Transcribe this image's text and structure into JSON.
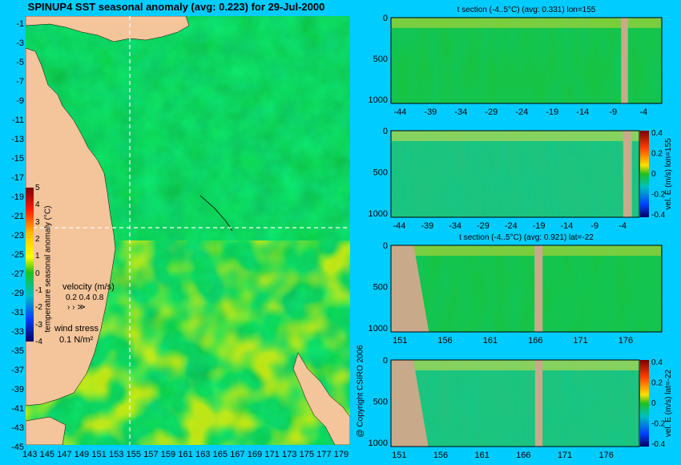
{
  "title": "SPINUP4 SST seasonal anomaly (avg: 0.223) for 29-Jul-2000",
  "copyright": "@ Copyright CSIRO 2006",
  "map": {
    "lat_labels": [
      "-1",
      "-3",
      "-5",
      "-7",
      "-9",
      "-11",
      "-13",
      "-15",
      "-17",
      "-19",
      "-21",
      "-23",
      "-25",
      "-27",
      "-29",
      "-31",
      "-33",
      "-35",
      "-37",
      "-39",
      "-41",
      "-43",
      "-45"
    ],
    "lon_labels": [
      "143",
      "145",
      "147",
      "149",
      "151",
      "153",
      "155",
      "157",
      "159",
      "161",
      "163",
      "165",
      "167",
      "169",
      "171",
      "173",
      "175",
      "177",
      "179"
    ],
    "colorbar_ticks": [
      "5",
      "4",
      "3",
      "2",
      "1",
      "0",
      "-1",
      "-2",
      "-3",
      "-4"
    ],
    "colorbar_label": "temperature seasonal anomaly (°C)",
    "velocity_label": "velocity (m/s)",
    "velocity_scale": "0.2 0.4 0.8",
    "wind_label": "wind stress",
    "wind_scale": "0.1 N/m²"
  },
  "panels": [
    {
      "title": "t section (-4..5°C) (avg: 0.331) lon=155",
      "x_ticks": [
        "-44",
        "-39",
        "-34",
        "-29",
        "-24",
        "-19",
        "-14",
        "-9",
        "-4"
      ],
      "y_ticks": [
        "0",
        "500",
        "1000"
      ]
    },
    {
      "title": "",
      "x_ticks": [
        "-44",
        "-39",
        "-34",
        "-29",
        "-24",
        "-19",
        "-14",
        "-9",
        "-4"
      ],
      "y_ticks": [
        "0",
        "500",
        "1000"
      ],
      "cb_label": "vel. E (m/s) lon=155",
      "cb_ticks": [
        "0.4",
        "0.2",
        "0",
        "-0.2",
        "-0.4"
      ]
    },
    {
      "title": "t section (-4..5°C) (avg: 0.921) lat=-22",
      "x_ticks": [
        "151",
        "156",
        "161",
        "166",
        "171",
        "176"
      ],
      "y_ticks": [
        "0",
        "500",
        "1000"
      ]
    },
    {
      "title": "",
      "x_ticks": [
        "151",
        "156",
        "161",
        "166",
        "171",
        "176"
      ],
      "y_ticks": [
        "0",
        "500",
        "1000"
      ],
      "cb_label": "vel. E (m/s) lat=-22",
      "cb_ticks": [
        "0.4",
        "0.2",
        "0",
        "-0.2",
        "-0.4"
      ]
    }
  ],
  "chart_data": [
    {
      "type": "heatmap",
      "title": "SPINUP4 SST seasonal anomaly (avg: 0.223) for 29-Jul-2000",
      "xlabel": "",
      "ylabel": "",
      "xlim": [
        143,
        180
      ],
      "ylim": [
        -45,
        0
      ],
      "colorbar_range": [
        -4,
        5
      ],
      "colorbar_label": "temperature seasonal anomaly (°C)"
    },
    {
      "type": "heatmap",
      "title": "t section (-4..5°C) (avg: 0.331) lon=155",
      "xlim": [
        -45,
        -1
      ],
      "ylim": [
        1050,
        0
      ],
      "x_ticks": [
        -44,
        -39,
        -34,
        -29,
        -24,
        -19,
        -14,
        -9,
        -4
      ],
      "y_ticks": [
        0,
        500,
        1000
      ]
    },
    {
      "type": "heatmap",
      "title": "",
      "xlim": [
        -45,
        -1
      ],
      "ylim": [
        1050,
        0
      ],
      "colorbar_range": [
        -0.4,
        0.4
      ],
      "colorbar_label": "vel. E (m/s) lon=155"
    },
    {
      "type": "heatmap",
      "title": "t section (-4..5°C) (avg: 0.921) lat=-22",
      "xlim": [
        150,
        180
      ],
      "ylim": [
        1050,
        0
      ],
      "x_ticks": [
        151,
        156,
        161,
        166,
        171,
        176
      ],
      "y_ticks": [
        0,
        500,
        1000
      ]
    },
    {
      "type": "heatmap",
      "title": "",
      "xlim": [
        150,
        180
      ],
      "ylim": [
        1050,
        0
      ],
      "colorbar_range": [
        -0.4,
        0.4
      ],
      "colorbar_label": "vel. E (m/s) lat=-22"
    }
  ]
}
